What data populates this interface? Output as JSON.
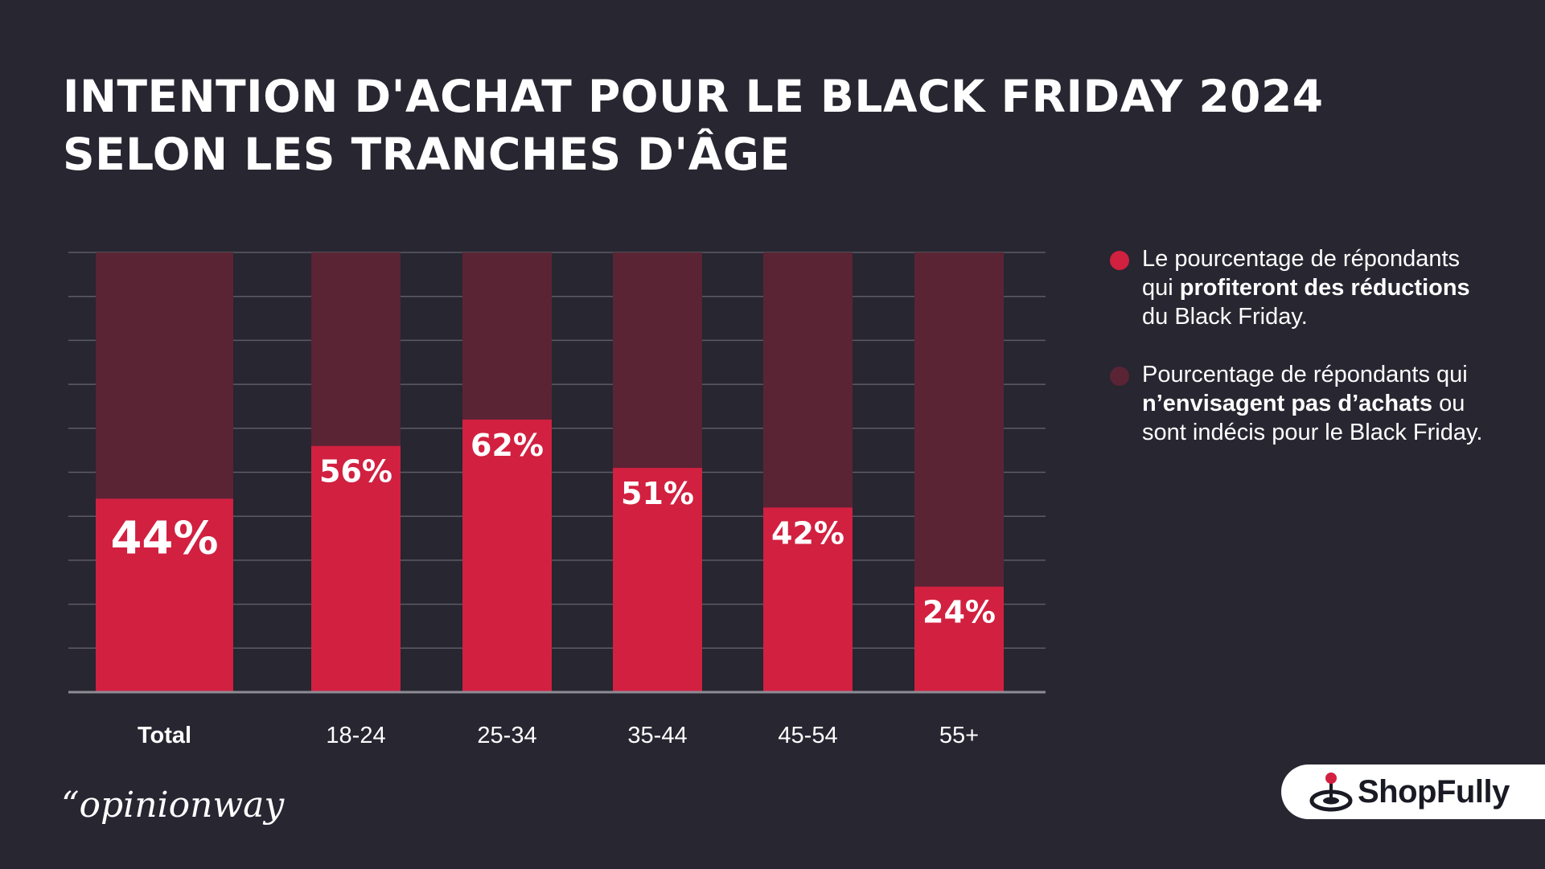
{
  "title": {
    "line1": "INTENTION D'ACHAT POUR LE BLACK FRIDAY 2024",
    "line2": "SELON LES TRANCHES D'ÂGE"
  },
  "legend": {
    "item1": {
      "pre": "Le pourcentage de répondants qui ",
      "bold": "profiteront des réductions",
      "post": " du Black Friday."
    },
    "item2": {
      "pre": "Pourcentage de répondants qui ",
      "bold": "n’envisagent pas d’achats",
      "post": " ou sont indécis pour le Black Friday."
    }
  },
  "source": "“opinionway",
  "brand": "ShopFully",
  "colors": {
    "background": "#272631",
    "buy": "#d22040",
    "nobuy": "#5a2434",
    "grid": "#5c5b66",
    "axis": "#8d8c95"
  },
  "chart_data": {
    "type": "bar",
    "stacked": true,
    "categories": [
      "Total",
      "18-24",
      "25-34",
      "35-44",
      "45-54",
      "55+"
    ],
    "series": [
      {
        "values": [
          44,
          56,
          62,
          51,
          42,
          24
        ],
        "labels": [
          "44%",
          "56%",
          "62%",
          "51%",
          "42%",
          "24%"
        ]
      },
      {
        "values": [
          56,
          44,
          38,
          49,
          58,
          76
        ]
      }
    ],
    "ylim": [
      0,
      100
    ],
    "grid": true,
    "legend": "right"
  }
}
